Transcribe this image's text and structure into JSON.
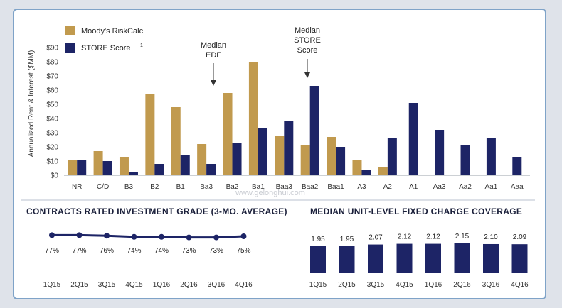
{
  "colors": {
    "moodys": "#c19a4e",
    "store": "#1d2466",
    "line": "#1d2466",
    "bar": "#1d2466"
  },
  "watermark": "www.gelonghui.com",
  "chart_data": [
    {
      "type": "bar",
      "ylabel": "Annualized Rent & Interest ($MM)",
      "ylim": [
        0,
        90
      ],
      "yticks": [
        "$0",
        "$10",
        "$20",
        "$30",
        "$40",
        "$50",
        "$60",
        "$70",
        "$80",
        "$90"
      ],
      "categories": [
        "NR",
        "C/D",
        "B3",
        "B2",
        "B1",
        "Ba3",
        "Ba2",
        "Ba1",
        "Baa3",
        "Baa2",
        "Baa1",
        "A3",
        "A2",
        "A1",
        "Aa3",
        "Aa2",
        "Aa1",
        "Aaa"
      ],
      "series": [
        {
          "name": "Moody's RiskCalc",
          "values": [
            11,
            17,
            13,
            57,
            48,
            22,
            58,
            80,
            28,
            21,
            27,
            11,
            6,
            null,
            null,
            null,
            null,
            null
          ]
        },
        {
          "name": "STORE Score",
          "superscript": "1",
          "values": [
            11,
            10,
            2,
            8,
            14,
            8,
            23,
            33,
            38,
            63,
            20,
            4,
            26,
            51,
            32,
            21,
            26,
            13
          ]
        }
      ],
      "annotations": [
        {
          "lines": [
            "Median",
            "EDF"
          ],
          "category": "Ba2"
        },
        {
          "lines": [
            "Median",
            "STORE",
            "Score"
          ],
          "category": "Baa2"
        }
      ]
    },
    {
      "type": "line",
      "title": "CONTRACTS RATED INVESTMENT GRADE (3-MO. AVERAGE)",
      "categories": [
        "1Q15",
        "2Q15",
        "3Q15",
        "4Q15",
        "1Q16",
        "2Q16",
        "3Q16",
        "4Q16"
      ],
      "values": [
        77,
        77,
        76,
        74,
        74,
        73,
        73,
        75
      ],
      "labels": [
        "77%",
        "77%",
        "76%",
        "74%",
        "74%",
        "73%",
        "73%",
        "75%"
      ]
    },
    {
      "type": "bar",
      "title": "MEDIAN UNIT-LEVEL FIXED CHARGE COVERAGE",
      "categories": [
        "1Q15",
        "2Q15",
        "3Q15",
        "4Q15",
        "1Q16",
        "2Q16",
        "3Q16",
        "4Q16"
      ],
      "values": [
        1.95,
        1.95,
        2.07,
        2.12,
        2.12,
        2.15,
        2.1,
        2.09
      ],
      "labels": [
        "1.95",
        "1.95",
        "2.07",
        "2.12",
        "2.12",
        "2.15",
        "2.10",
        "2.09"
      ]
    }
  ]
}
